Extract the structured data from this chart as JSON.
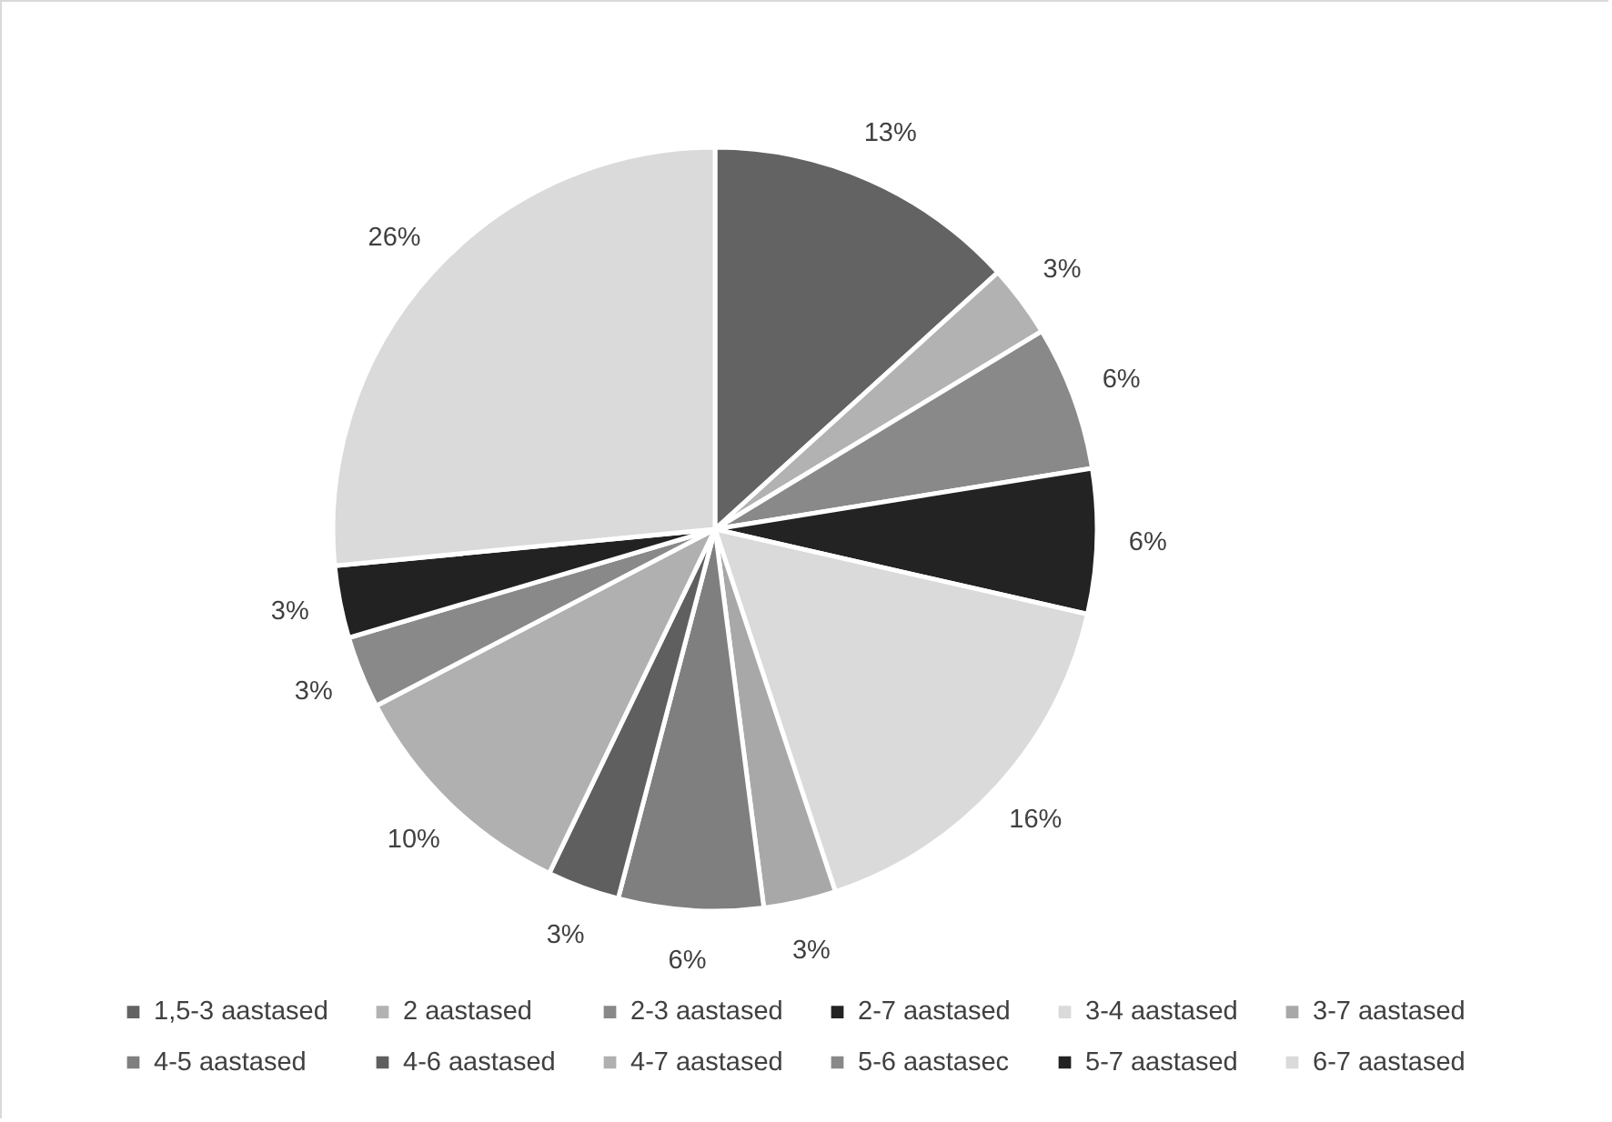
{
  "chart_data": {
    "type": "pie",
    "categories": [
      "1,5-3 aastased",
      "2 aastased",
      "2-3 aastased",
      "2-7 aastased",
      "3-4 aastased",
      "3-7 aastased",
      "4-5 aastased",
      "4-6 aastased",
      "4-7 aastased",
      "5-6 aastasec",
      "5-7 aastased",
      "6-7 aastased"
    ],
    "values": [
      13,
      3,
      6,
      6,
      16,
      3,
      6,
      3,
      10,
      3,
      3,
      26
    ],
    "value_labels": [
      "13%",
      "3%",
      "6%",
      "6%",
      "16%",
      "3%",
      "6%",
      "3%",
      "10%",
      "3%",
      "3%",
      "26%"
    ],
    "colors": [
      "#636363",
      "#b2b2b2",
      "#898989",
      "#232323",
      "#dadada",
      "#a8a8a8",
      "#7f7f7f",
      "#5f5f5f",
      "#b0b0b0",
      "#898989",
      "#222222",
      "#dadada"
    ],
    "legend": "bottom"
  }
}
